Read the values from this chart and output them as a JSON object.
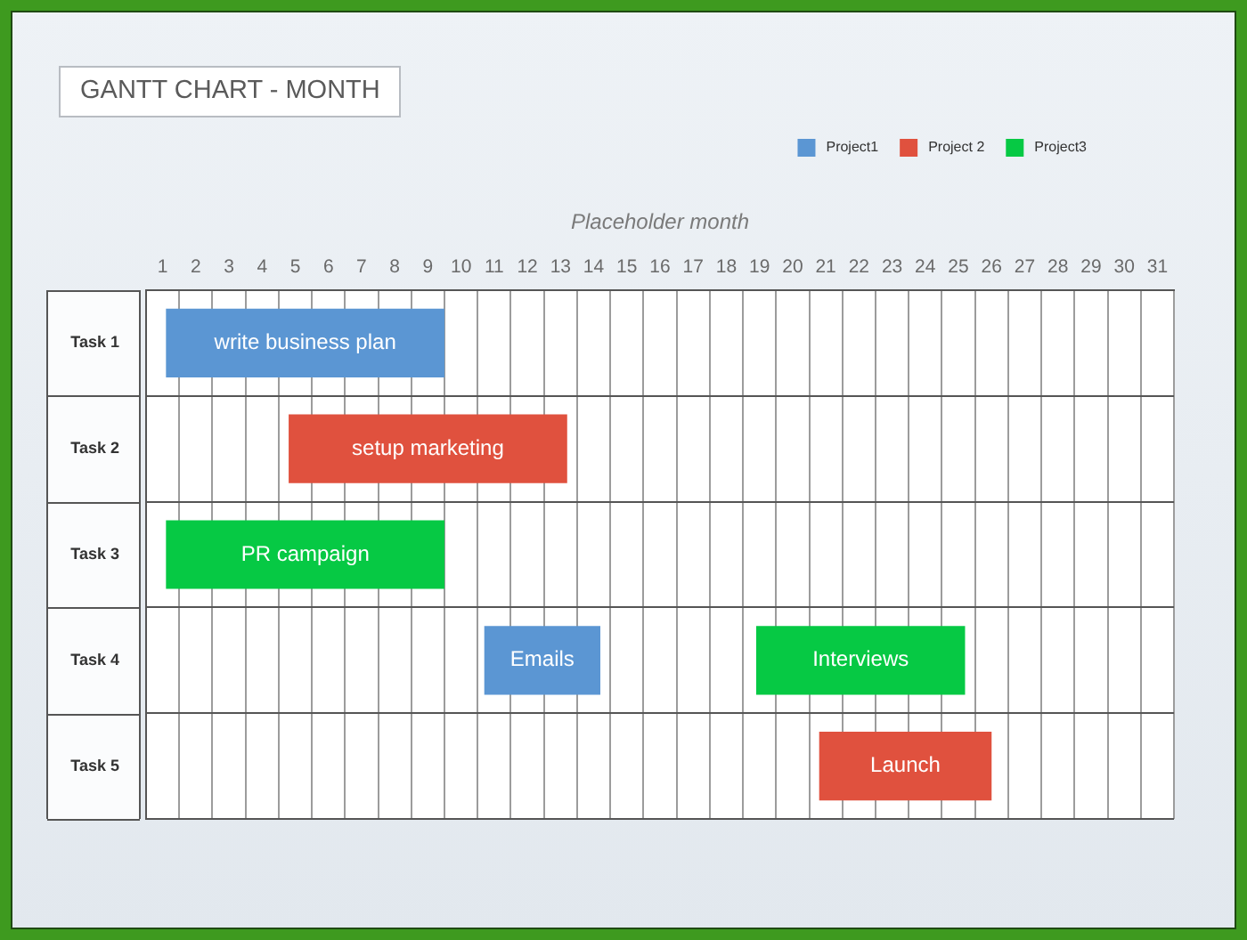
{
  "chart_data": {
    "type": "bar",
    "orientation": "horizontal",
    "title": "GANTT CHART - MONTH",
    "xlabel": "Placeholder month",
    "categories": [
      "Task 1",
      "Task 2",
      "Task 3",
      "Task 4",
      "Task 5"
    ],
    "series": [
      {
        "name": "Project1",
        "color": "#5b96d3",
        "values": [
          8.4,
          null,
          null,
          3.5,
          null
        ],
        "base": [
          1.1,
          null,
          null,
          10.7,
          null
        ],
        "value_labels": [
          "write business plan",
          null,
          null,
          "Emails",
          null
        ]
      },
      {
        "name": "Project 2",
        "color": "#e0513e",
        "values": [
          null,
          8.4,
          null,
          null,
          5.2
        ],
        "base": [
          null,
          4.8,
          null,
          null,
          20.8
        ],
        "value_labels": [
          null,
          "setup marketing",
          null,
          null,
          "Launch"
        ]
      },
      {
        "name": "Project3",
        "color": "#06c944",
        "values": [
          null,
          null,
          8.4,
          6.3,
          null
        ],
        "base": [
          null,
          null,
          1.1,
          18.9,
          null
        ],
        "value_labels": [
          null,
          null,
          "PR campaign",
          "Interviews",
          null
        ]
      }
    ],
    "xlim": [
      0.5,
      31.5
    ],
    "xticks": [
      1,
      2,
      3,
      4,
      5,
      6,
      7,
      8,
      9,
      10,
      11,
      12,
      13,
      14,
      15,
      16,
      17,
      18,
      19,
      20,
      21,
      22,
      23,
      24,
      25,
      26,
      27,
      28,
      29,
      30,
      31
    ],
    "grid": true,
    "legend": "top right"
  }
}
